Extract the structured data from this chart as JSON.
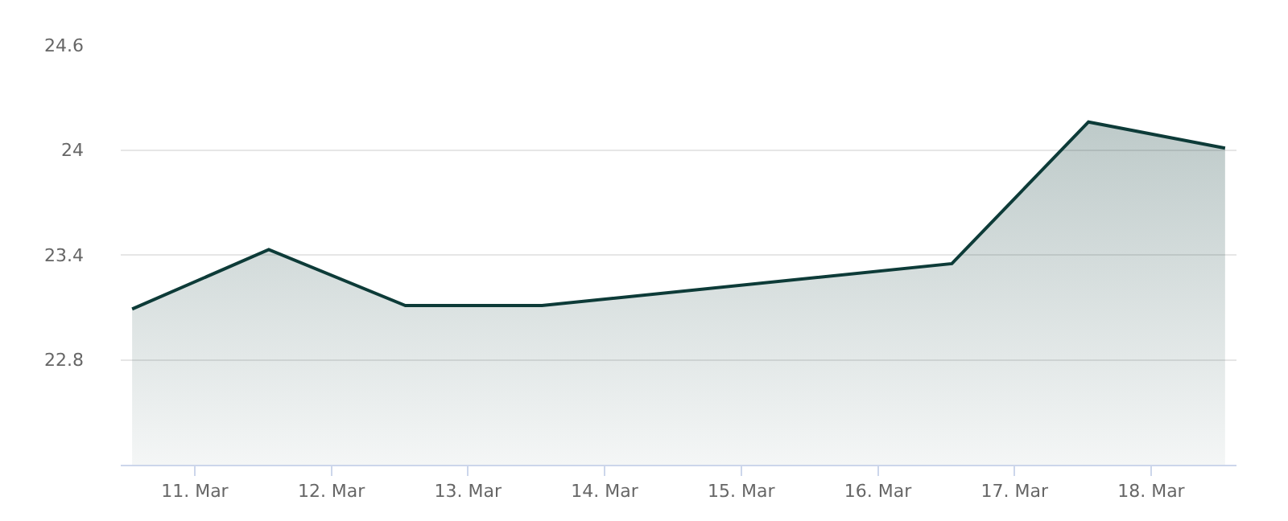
{
  "chart_data": {
    "type": "area",
    "x": [
      "--03-10T13:00",
      "--03-11T13:00",
      "--03-12T13:00",
      "--03-13T13:00",
      "--03-16T13:00",
      "--03-17T13:00",
      "--03-18T13:00"
    ],
    "series": [
      {
        "color": "#0d3b38",
        "values": [
          23.09,
          23.43,
          23.11,
          23.11,
          23.35,
          24.16,
          24.01
        ]
      }
    ],
    "xlim": [
      "--03-10T11:00",
      "--03-18T15:00"
    ],
    "xticks": [
      {
        "value": "--03-11",
        "label": "11. Mar"
      },
      {
        "value": "--03-12",
        "label": "12. Mar"
      },
      {
        "value": "--03-13",
        "label": "13. Mar"
      },
      {
        "value": "--03-14",
        "label": "14. Mar"
      },
      {
        "value": "--03-15",
        "label": "15. Mar"
      },
      {
        "value": "--03-16",
        "label": "16. Mar"
      },
      {
        "value": "--03-17",
        "label": "17. Mar"
      },
      {
        "value": "--03-18",
        "label": "18. Mar"
      }
    ],
    "ylim": [
      22.2,
      24.6
    ],
    "yticks": [
      22.8,
      23.4,
      24,
      24.6
    ],
    "grid": "y",
    "marker": "none",
    "line_style": "solid"
  }
}
